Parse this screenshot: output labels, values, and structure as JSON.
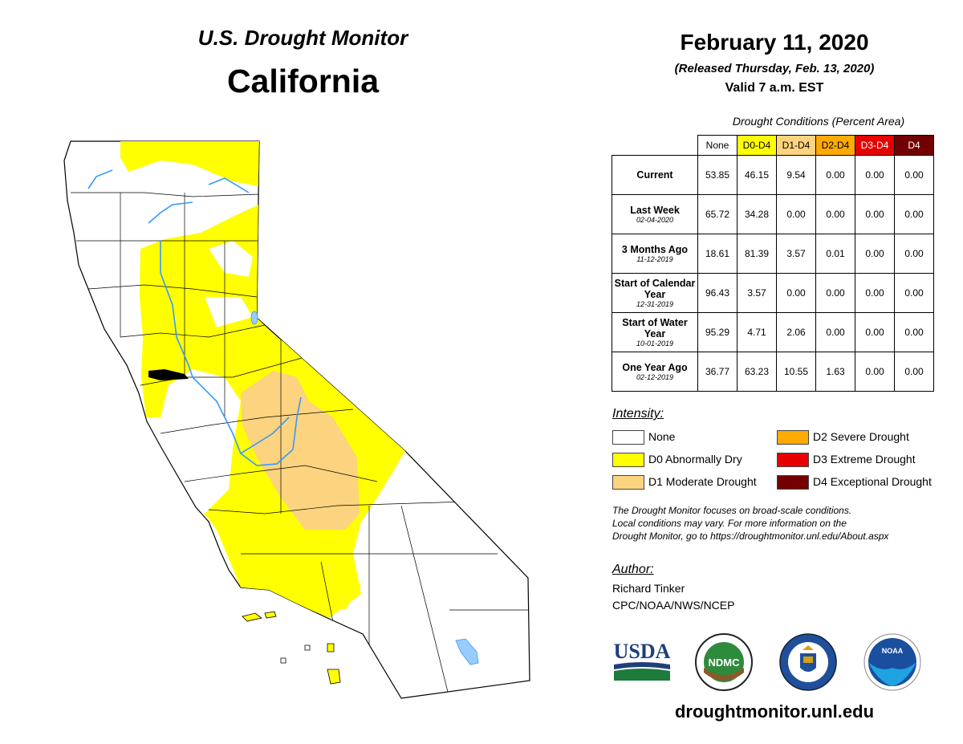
{
  "header": {
    "map_title": "U.S. Drought Monitor",
    "state": "California",
    "date": "February 11, 2020",
    "release": "(Released Thursday, Feb. 13, 2020)",
    "valid": "Valid 7 a.m. EST"
  },
  "table": {
    "caption": "Drought Conditions (Percent Area)",
    "columns": [
      {
        "label": "None",
        "color": "#ffffff",
        "text_color": "#000000"
      },
      {
        "label": "D0-D4",
        "color": "#ffff00",
        "text_color": "#000000"
      },
      {
        "label": "D1-D4",
        "color": "#fcd37f",
        "text_color": "#000000"
      },
      {
        "label": "D2-D4",
        "color": "#ffaa00",
        "text_color": "#000000"
      },
      {
        "label": "D3-D4",
        "color": "#e60000",
        "text_color": "#ffffff"
      },
      {
        "label": "D4",
        "color": "#730000",
        "text_color": "#ffffff"
      }
    ],
    "rows": [
      {
        "label": "Current",
        "date": "",
        "values": [
          "53.85",
          "46.15",
          "9.54",
          "0.00",
          "0.00",
          "0.00"
        ]
      },
      {
        "label": "Last Week",
        "date": "02-04-2020",
        "values": [
          "65.72",
          "34.28",
          "0.00",
          "0.00",
          "0.00",
          "0.00"
        ]
      },
      {
        "label": "3 Months Ago",
        "date": "11-12-2019",
        "values": [
          "18.61",
          "81.39",
          "3.57",
          "0.01",
          "0.00",
          "0.00"
        ]
      },
      {
        "label": "Start of Calendar Year",
        "date": "12-31-2019",
        "values": [
          "96.43",
          "3.57",
          "0.00",
          "0.00",
          "0.00",
          "0.00"
        ]
      },
      {
        "label": "Start of Water Year",
        "date": "10-01-2019",
        "values": [
          "95.29",
          "4.71",
          "2.06",
          "0.00",
          "0.00",
          "0.00"
        ]
      },
      {
        "label": "One Year Ago",
        "date": "02-12-2019",
        "values": [
          "36.77",
          "63.23",
          "10.55",
          "1.63",
          "0.00",
          "0.00"
        ]
      }
    ]
  },
  "legend": {
    "heading": "Intensity:",
    "items": [
      {
        "label": "None",
        "color": "#ffffff"
      },
      {
        "label": "D0 Abnormally Dry",
        "color": "#ffff00"
      },
      {
        "label": "D1 Moderate Drought",
        "color": "#fcd37f"
      },
      {
        "label": "D2 Severe Drought",
        "color": "#ffaa00"
      },
      {
        "label": "D3 Extreme Drought",
        "color": "#e60000"
      },
      {
        "label": "D4 Exceptional Drought",
        "color": "#730000"
      }
    ]
  },
  "note": {
    "line1": "The Drought Monitor focuses on broad-scale conditions.",
    "line2": "Local conditions may vary. For more information on the",
    "line3": "Drought Monitor, go to https://droughtmonitor.unl.edu/About.aspx"
  },
  "author": {
    "heading": "Author:",
    "name": "Richard Tinker",
    "org": "CPC/NOAA/NWS/NCEP"
  },
  "logos": {
    "usda": "USDA",
    "ndmc": "NDMC",
    "noaa": "NOAA"
  },
  "map": {
    "state_fill": "#ffffff",
    "d0_color": "#ffff00",
    "d1_color": "#fcd37f",
    "river_color": "#3399ff",
    "lake_color": "#99ccff"
  },
  "footer": {
    "url": "droughtmonitor.unl.edu"
  }
}
